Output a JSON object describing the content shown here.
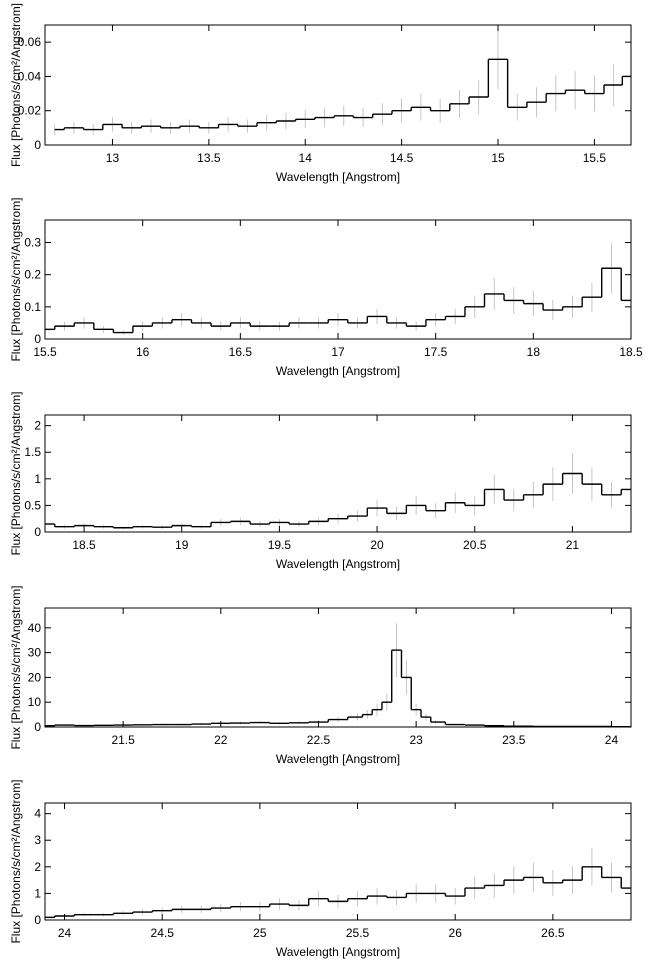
{
  "chart_data": [
    {
      "type": "line",
      "xlabel": "Wavelength [Angstrom]",
      "ylabel": "Flux [Photons/s/cm²/Angstrom]",
      "xlim": [
        12.65,
        15.69
      ],
      "ylim": [
        0,
        0.07
      ],
      "xticks": [
        13,
        13.5,
        14,
        14.5,
        15,
        15.5
      ],
      "xtick_labels": [
        "13",
        "13.5",
        "14",
        "14.5",
        "15",
        "15.5"
      ],
      "yticks": [
        0,
        0.02,
        0.04,
        0.06
      ],
      "ytick_labels": [
        "0",
        "0.02",
        "0.04",
        "0.06"
      ],
      "series": [
        {
          "x": [
            12.7,
            12.8,
            12.9,
            13.0,
            13.1,
            13.2,
            13.3,
            13.4,
            13.5,
            13.6,
            13.7,
            13.8,
            13.9,
            14.0,
            14.1,
            14.2,
            14.3,
            14.4,
            14.5,
            14.6,
            14.7,
            14.8,
            14.9,
            15.0,
            15.1,
            15.2,
            15.3,
            15.4,
            15.5,
            15.6,
            15.69
          ],
          "y": [
            0.009,
            0.01,
            0.009,
            0.012,
            0.01,
            0.011,
            0.01,
            0.011,
            0.01,
            0.012,
            0.011,
            0.013,
            0.014,
            0.015,
            0.016,
            0.017,
            0.016,
            0.018,
            0.02,
            0.022,
            0.02,
            0.024,
            0.028,
            0.05,
            0.022,
            0.025,
            0.03,
            0.032,
            0.03,
            0.035,
            0.04
          ]
        }
      ]
    },
    {
      "type": "line",
      "xlabel": "Wavelength [Angstrom]",
      "ylabel": "Flux [Photons/s/cm²/Angstrom]",
      "xlim": [
        15.5,
        18.5
      ],
      "ylim": [
        0,
        0.37
      ],
      "xticks": [
        15.5,
        16,
        16.5,
        17,
        17.5,
        18,
        18.5
      ],
      "xtick_labels": [
        "15.5",
        "16",
        "16.5",
        "17",
        "17.5",
        "18",
        "18.5"
      ],
      "yticks": [
        0,
        0.1,
        0.2,
        0.3
      ],
      "ytick_labels": [
        "0",
        "0.1",
        "0.2",
        "0.3"
      ],
      "series": [
        {
          "x": [
            15.5,
            15.6,
            15.7,
            15.8,
            15.9,
            16.0,
            16.1,
            16.2,
            16.3,
            16.4,
            16.5,
            16.6,
            16.7,
            16.8,
            16.9,
            17.0,
            17.1,
            17.2,
            17.3,
            17.4,
            17.5,
            17.6,
            17.7,
            17.8,
            17.9,
            18.0,
            18.1,
            18.2,
            18.3,
            18.4,
            18.5
          ],
          "y": [
            0.03,
            0.04,
            0.05,
            0.03,
            0.02,
            0.04,
            0.05,
            0.06,
            0.05,
            0.04,
            0.05,
            0.04,
            0.04,
            0.05,
            0.05,
            0.06,
            0.05,
            0.07,
            0.05,
            0.04,
            0.06,
            0.07,
            0.1,
            0.14,
            0.12,
            0.11,
            0.09,
            0.1,
            0.13,
            0.22,
            0.12
          ]
        }
      ]
    },
    {
      "type": "line",
      "xlabel": "Wavelength [Angstrom]",
      "ylabel": "Flux [Photons/s/cm²/Angstrom]",
      "xlim": [
        18.3,
        21.3
      ],
      "ylim": [
        0,
        2.2
      ],
      "xticks": [
        18.5,
        19,
        19.5,
        20,
        20.5,
        21
      ],
      "xtick_labels": [
        "18.5",
        "19",
        "19.5",
        "20",
        "20.5",
        "21"
      ],
      "yticks": [
        0,
        0.5,
        1,
        1.5,
        2
      ],
      "ytick_labels": [
        "0",
        "0.5",
        "1",
        "1.5",
        "2"
      ],
      "series": [
        {
          "x": [
            18.3,
            18.4,
            18.5,
            18.6,
            18.7,
            18.8,
            18.9,
            19.0,
            19.1,
            19.2,
            19.3,
            19.4,
            19.5,
            19.6,
            19.7,
            19.8,
            19.9,
            20.0,
            20.1,
            20.2,
            20.3,
            20.4,
            20.5,
            20.6,
            20.7,
            20.8,
            20.9,
            21.0,
            21.1,
            21.2,
            21.3
          ],
          "y": [
            0.15,
            0.1,
            0.12,
            0.1,
            0.08,
            0.1,
            0.09,
            0.12,
            0.1,
            0.18,
            0.2,
            0.15,
            0.18,
            0.15,
            0.2,
            0.25,
            0.3,
            0.45,
            0.35,
            0.5,
            0.4,
            0.55,
            0.5,
            0.8,
            0.6,
            0.7,
            0.9,
            1.1,
            0.9,
            0.7,
            0.8
          ]
        }
      ]
    },
    {
      "type": "line",
      "xlabel": "Wavelength [Angstrom]",
      "ylabel": "Flux [Photons/s/cm²/Angstrom]",
      "xlim": [
        21.1,
        24.1
      ],
      "ylim": [
        0,
        48
      ],
      "xticks": [
        21.5,
        22,
        22.5,
        23,
        23.5,
        24
      ],
      "xtick_labels": [
        "21.5",
        "22",
        "22.5",
        "23",
        "23.5",
        "24"
      ],
      "yticks": [
        0,
        10,
        20,
        30,
        40
      ],
      "ytick_labels": [
        "0",
        "10",
        "20",
        "30",
        "40"
      ],
      "series": [
        {
          "x": [
            21.1,
            21.2,
            21.3,
            21.4,
            21.5,
            21.6,
            21.7,
            21.8,
            21.9,
            22.0,
            22.1,
            22.2,
            22.3,
            22.4,
            22.5,
            22.6,
            22.7,
            22.75,
            22.8,
            22.85,
            22.9,
            22.95,
            23.0,
            23.05,
            23.1,
            23.2,
            23.3,
            23.4,
            23.5,
            23.7,
            23.9,
            24.1
          ],
          "y": [
            0.5,
            0.8,
            0.6,
            0.7,
            0.8,
            0.9,
            1.0,
            1.0,
            1.2,
            1.5,
            1.6,
            1.8,
            1.5,
            1.7,
            2.0,
            3.0,
            4.0,
            5.0,
            7.0,
            10.0,
            31.0,
            20.0,
            7.0,
            4.0,
            2.0,
            1.0,
            0.8,
            0.5,
            0.3,
            0.2,
            0.2,
            0.1
          ]
        }
      ]
    },
    {
      "type": "line",
      "xlabel": "Wavelength [Angstrom]",
      "ylabel": "Flux [Photons/s/cm²/Angstrom]",
      "xlim": [
        23.9,
        26.9
      ],
      "ylim": [
        0,
        4.4
      ],
      "xticks": [
        24,
        24.5,
        25,
        25.5,
        26,
        26.5
      ],
      "xtick_labels": [
        "24",
        "24.5",
        "25",
        "25.5",
        "26",
        "26.5"
      ],
      "yticks": [
        0,
        1,
        2,
        3,
        4
      ],
      "ytick_labels": [
        "0",
        "1",
        "2",
        "3",
        "4"
      ],
      "series": [
        {
          "x": [
            23.9,
            24.0,
            24.1,
            24.2,
            24.3,
            24.4,
            24.5,
            24.6,
            24.7,
            24.8,
            24.9,
            25.0,
            25.1,
            25.2,
            25.3,
            25.4,
            25.5,
            25.6,
            25.7,
            25.8,
            25.9,
            26.0,
            26.1,
            26.2,
            26.3,
            26.4,
            26.5,
            26.6,
            26.7,
            26.8,
            26.9
          ],
          "y": [
            0.1,
            0.15,
            0.2,
            0.2,
            0.25,
            0.3,
            0.35,
            0.4,
            0.4,
            0.45,
            0.5,
            0.5,
            0.6,
            0.55,
            0.8,
            0.7,
            0.8,
            0.9,
            0.85,
            1.0,
            1.0,
            0.9,
            1.2,
            1.3,
            1.5,
            1.6,
            1.4,
            1.5,
            2.0,
            1.6,
            1.2
          ]
        }
      ]
    }
  ]
}
